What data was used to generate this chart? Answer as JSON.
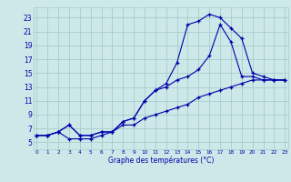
{
  "xlabel": "Graphe des températures (°C)",
  "bg_color": "#cce8e8",
  "grid_color": "#aacccc",
  "line_color": "#0000aa",
  "x_ticks": [
    0,
    1,
    2,
    3,
    4,
    5,
    6,
    7,
    8,
    9,
    10,
    11,
    12,
    13,
    14,
    15,
    16,
    17,
    18,
    19,
    20,
    21,
    22,
    23
  ],
  "y_ticks": [
    5,
    7,
    9,
    11,
    13,
    15,
    17,
    19,
    21,
    23
  ],
  "xlim": [
    -0.3,
    23.3
  ],
  "ylim": [
    4.0,
    24.5
  ],
  "line1_y": [
    6.0,
    6.0,
    6.5,
    7.5,
    6.0,
    6.0,
    6.5,
    6.5,
    8.0,
    8.5,
    11.0,
    12.5,
    13.5,
    16.5,
    22.0,
    22.5,
    23.5,
    23.0,
    21.5,
    20.0,
    15.0,
    14.5,
    14.0,
    14.0
  ],
  "line2_y": [
    6.0,
    6.0,
    6.5,
    7.5,
    6.0,
    6.0,
    6.5,
    6.5,
    8.0,
    8.5,
    11.0,
    12.5,
    13.0,
    14.0,
    14.5,
    15.5,
    17.5,
    22.0,
    19.5,
    14.5,
    14.5,
    14.0,
    14.0,
    14.0
  ],
  "line3_y": [
    6.0,
    6.0,
    6.5,
    5.5,
    5.5,
    5.5,
    6.0,
    6.5,
    7.5,
    7.5,
    8.5,
    9.0,
    9.5,
    10.0,
    10.5,
    11.5,
    12.0,
    12.5,
    13.0,
    13.5,
    14.0,
    14.0,
    14.0,
    14.0
  ],
  "xlabel_fontsize": 5.5,
  "ytick_fontsize": 5.5,
  "xtick_fontsize": 4.2
}
